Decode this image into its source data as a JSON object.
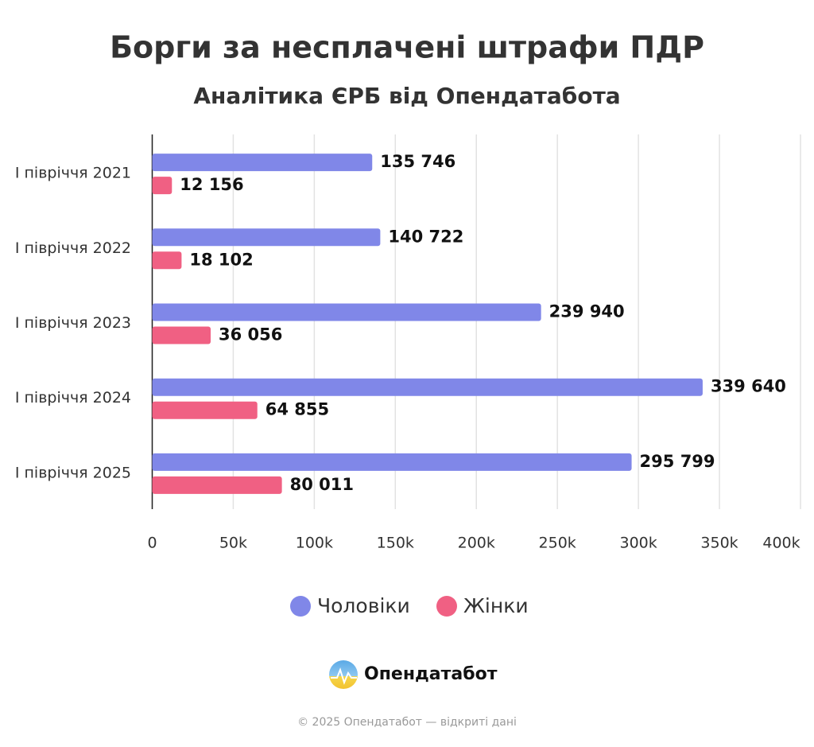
{
  "chart_data": {
    "type": "hbar",
    "title": "Борги за несплачені штрафи ПДР",
    "subtitle": "Аналітика ЄРБ від Опендатабота",
    "categories": [
      "І півріччя 2021",
      "І півріччя 2022",
      "І півріччя 2023",
      "І півріччя 2024",
      "І півріччя 2025"
    ],
    "series": [
      {
        "name": "Чоловіки",
        "color": "#8087e8",
        "values": [
          135746,
          140722,
          239940,
          339640,
          295799
        ],
        "value_labels": [
          "135 746",
          "140 722",
          "239 940",
          "339 640",
          "295 799"
        ]
      },
      {
        "name": "Жінки",
        "color": "#f06083",
        "values": [
          12156,
          18102,
          36056,
          64855,
          80011
        ],
        "value_labels": [
          "12 156",
          "18 102",
          "36 056",
          "64 855",
          "80 011"
        ]
      }
    ],
    "xlim": [
      0,
      400000
    ],
    "xticks": [
      0,
      {
        "value": 50000,
        "label": "50k"
      },
      {
        "value": 100000,
        "label": "100k"
      },
      {
        "value": 150000,
        "label": "150k"
      },
      {
        "value": 200000,
        "label": "200k"
      },
      {
        "value": 250000,
        "label": "250k"
      },
      {
        "value": 300000,
        "label": "300k"
      },
      {
        "value": 350000,
        "label": "350k"
      },
      {
        "value": 400000,
        "label": "400k"
      }
    ],
    "grid": true,
    "legend": "bottom",
    "brand": "Опендатабот",
    "footer": "© 2025 Опендатабот — відкриті дані"
  }
}
